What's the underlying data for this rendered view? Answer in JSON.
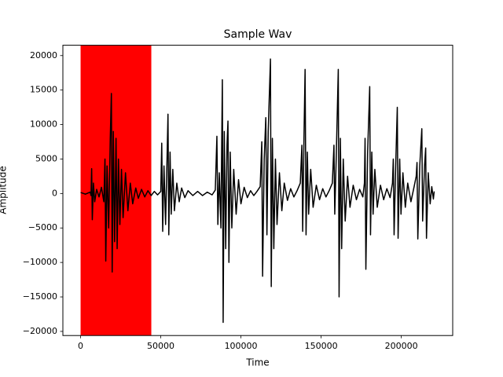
{
  "chart_data": {
    "type": "line",
    "title": "Sample Wav",
    "x_label": "Time",
    "y_label": "Amplitude",
    "span": [
      0,
      44100
    ],
    "span_color": "#ff0000",
    "xlim": [
      -11050,
      232050
    ],
    "ylim": [
      -20600,
      21500
    ],
    "xticks": [
      0,
      50000,
      100000,
      150000,
      200000
    ],
    "yticks": [
      {
        "value": -20000,
        "label": "−20000"
      },
      {
        "value": -15000,
        "label": "−15000"
      },
      {
        "value": -10000,
        "label": "−10000"
      },
      {
        "value": -5000,
        "label": "−5000"
      },
      0,
      5000,
      10000,
      15000,
      20000
    ],
    "grid": false,
    "series": [
      {
        "color": "#000000",
        "x": [
          0,
          3000,
          6000,
          6500,
          6900,
          7300,
          8000,
          8800,
          10000,
          11500,
          13000,
          14500,
          15200,
          15700,
          16500,
          17500,
          18500,
          19200,
          19700,
          20400,
          21200,
          22100,
          22800,
          23600,
          24500,
          25500,
          26500,
          28000,
          29500,
          31000,
          32500,
          34400,
          36000,
          38000,
          40000,
          42000,
          44000,
          46000,
          48000,
          50000,
          50600,
          51200,
          52000,
          53000,
          54000,
          54500,
          55000,
          55800,
          56500,
          57500,
          58500,
          60000,
          61500,
          63000,
          65000,
          67000,
          70000,
          73000,
          76000,
          79000,
          82000,
          84000,
          85000,
          85600,
          86500,
          87500,
          88400,
          88900,
          89600,
          90500,
          91300,
          91900,
          92500,
          93300,
          94300,
          95500,
          97000,
          98500,
          100000,
          102000,
          104000,
          106000,
          108000,
          110000,
          112000,
          113000,
          113500,
          114500,
          115500,
          116200,
          117000,
          118400,
          118900,
          119600,
          120500,
          121500,
          122500,
          124000,
          125500,
          127000,
          129000,
          131000,
          133000,
          135000,
          137000,
          138000,
          138500,
          139300,
          140000,
          140600,
          141400,
          142200,
          143500,
          145000,
          147000,
          149000,
          151000,
          153000,
          155000,
          157000,
          158000,
          158500,
          159500,
          160700,
          161200,
          162000,
          162800,
          163800,
          165000,
          166500,
          168000,
          170000,
          172000,
          174000,
          176000,
          177000,
          177400,
          177900,
          179000,
          180300,
          180800,
          181600,
          182400,
          183500,
          185000,
          187000,
          189000,
          191000,
          193000,
          194500,
          195000,
          195500,
          196500,
          197500,
          198000,
          199000,
          199800,
          201000,
          202500,
          204000,
          206000,
          208000,
          209300,
          209800,
          210300,
          211500,
          212800,
          213300,
          214500,
          215200,
          215700,
          216800,
          218000,
          219000,
          220000,
          220500
        ],
        "values": [
          150,
          -100,
          200,
          -300,
          3600,
          -3800,
          1500,
          -1200,
          600,
          -500,
          900,
          -1200,
          5000,
          -9800,
          4000,
          -5000,
          8000,
          14500,
          -11400,
          9000,
          -7000,
          8000,
          -8000,
          5000,
          -4500,
          3500,
          -3500,
          3000,
          -2500,
          1500,
          -1500,
          800,
          -700,
          600,
          -500,
          400,
          -300,
          300,
          -200,
          300,
          7300,
          -5500,
          4000,
          -4500,
          6000,
          11500,
          -6000,
          6000,
          -3000,
          3500,
          -2500,
          1500,
          -1200,
          800,
          -600,
          400,
          -300,
          300,
          -300,
          200,
          -200,
          500,
          8300,
          -4500,
          3000,
          -5000,
          16500,
          -18700,
          9000,
          -8000,
          7000,
          10500,
          -10000,
          6000,
          -5000,
          3500,
          -3000,
          2000,
          -1500,
          900,
          -600,
          400,
          -300,
          300,
          1000,
          7500,
          -12000,
          5000,
          11000,
          -6000,
          9000,
          19500,
          -13500,
          8000,
          -8000,
          5000,
          -4500,
          3000,
          -2500,
          1500,
          -1000,
          700,
          -500,
          400,
          1500,
          7000,
          -5500,
          8000,
          18000,
          -6000,
          6000,
          -3000,
          3500,
          -2000,
          1200,
          -900,
          700,
          -500,
          400,
          1500,
          7000,
          -3000,
          6000,
          18000,
          -15000,
          8000,
          -8000,
          5000,
          -4000,
          2500,
          -2000,
          1200,
          -900,
          600,
          -500,
          1500,
          8000,
          -11000,
          6000,
          15500,
          -6000,
          6000,
          -3000,
          3500,
          -2000,
          1200,
          -900,
          700,
          -600,
          1500,
          5000,
          -6000,
          4000,
          12500,
          -6500,
          5000,
          -3000,
          3000,
          -2000,
          1500,
          -1200,
          1000,
          2500,
          4500,
          -6600,
          4000,
          9400,
          -4000,
          4000,
          6600,
          -6500,
          3000,
          -1500,
          1000,
          -800,
          300
        ]
      }
    ]
  }
}
